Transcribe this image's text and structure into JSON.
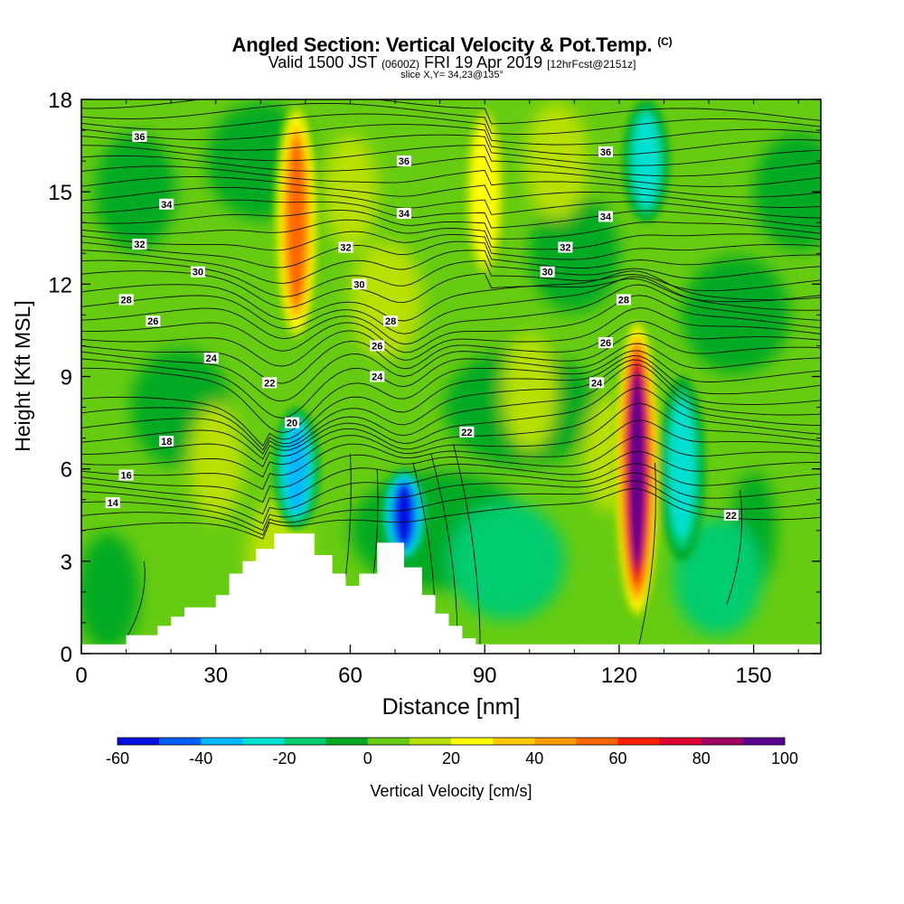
{
  "chart_data": {
    "type": "heatmap",
    "title": "Angled Section: Vertical Velocity & Pot.Temp.",
    "title_mark": "(C)",
    "subtitle_main": "Valid 1500 JST",
    "subtitle_zone": "(0600Z)",
    "subtitle_date": "FRI 19 Apr 2019",
    "subtitle_fcst": "[12hrFcst@2151z]",
    "slice_label": "slice X,Y= 34,23@135°",
    "xlabel": "Distance [nm]",
    "ylabel": "Height [Kft MSL]",
    "xlim": [
      0,
      165
    ],
    "ylim": [
      0,
      18
    ],
    "x_ticks": [
      0,
      30,
      60,
      90,
      120,
      150
    ],
    "y_ticks": [
      0,
      3,
      6,
      9,
      12,
      15,
      18
    ],
    "colorbar": {
      "label": "Vertical Velocity [cm/s]",
      "range": [
        -60,
        100
      ],
      "tick_values": [
        -60,
        -40,
        -20,
        0,
        20,
        40,
        60,
        80,
        100
      ],
      "colors": [
        "#0010e0",
        "#0060ff",
        "#00b8ff",
        "#00e0d0",
        "#00cc70",
        "#00aa22",
        "#66cc11",
        "#b8e000",
        "#ffff00",
        "#ffc800",
        "#ff9a00",
        "#ff6600",
        "#ff2000",
        "#dd0030",
        "#a00060",
        "#5a0090"
      ]
    },
    "velocity_features": [
      {
        "x": 48,
        "z_bottom": 10,
        "z_top": 18,
        "w": 60
      },
      {
        "x": 48,
        "z_bottom": 4,
        "z_top": 8,
        "w": -40
      },
      {
        "x": 72,
        "z_bottom": 3,
        "z_top": 6,
        "w": -60
      },
      {
        "x": 90,
        "z_bottom": 12,
        "z_top": 18,
        "w": 30
      },
      {
        "x": 124,
        "z_bottom": 1,
        "z_top": 11,
        "w": 100
      },
      {
        "x": 134,
        "z_bottom": 3,
        "z_top": 9,
        "w": -30
      },
      {
        "x": 126,
        "z_bottom": 14,
        "z_top": 18,
        "w": -30
      }
    ],
    "terrain": [
      [
        10,
        0.6
      ],
      [
        17,
        0.6
      ],
      [
        17,
        0.9
      ],
      [
        20,
        0.9
      ],
      [
        20,
        1.2
      ],
      [
        23,
        1.2
      ],
      [
        23,
        1.5
      ],
      [
        30,
        1.5
      ],
      [
        30,
        1.9
      ],
      [
        33,
        1.9
      ],
      [
        33,
        2.6
      ],
      [
        36,
        2.6
      ],
      [
        36,
        3.0
      ],
      [
        39,
        3.0
      ],
      [
        39,
        3.4
      ],
      [
        43,
        3.4
      ],
      [
        43,
        3.9
      ],
      [
        52,
        3.9
      ],
      [
        52,
        3.2
      ],
      [
        56,
        3.2
      ],
      [
        56,
        2.6
      ],
      [
        59,
        2.6
      ],
      [
        59,
        2.2
      ],
      [
        62,
        2.2
      ],
      [
        62,
        2.6
      ],
      [
        66,
        2.6
      ],
      [
        66,
        3.6
      ],
      [
        72,
        3.6
      ],
      [
        72,
        2.8
      ],
      [
        76,
        2.8
      ],
      [
        76,
        1.9
      ],
      [
        79,
        1.9
      ],
      [
        79,
        1.3
      ],
      [
        82,
        1.3
      ],
      [
        82,
        0.9
      ],
      [
        85,
        0.9
      ],
      [
        85,
        0.5
      ],
      [
        88,
        0.5
      ],
      [
        88,
        0.3
      ],
      [
        91,
        0.3
      ],
      [
        91,
        0.0
      ]
    ],
    "theta_labels": [
      {
        "text": "36",
        "x": 13,
        "z": 16.8
      },
      {
        "text": "36",
        "x": 72,
        "z": 16.0
      },
      {
        "text": "36",
        "x": 117,
        "z": 16.3
      },
      {
        "text": "34",
        "x": 19,
        "z": 14.6
      },
      {
        "text": "34",
        "x": 72,
        "z": 14.3
      },
      {
        "text": "34",
        "x": 117,
        "z": 14.2
      },
      {
        "text": "32",
        "x": 13,
        "z": 13.3
      },
      {
        "text": "32",
        "x": 59,
        "z": 13.2
      },
      {
        "text": "32",
        "x": 108,
        "z": 13.2
      },
      {
        "text": "30",
        "x": 26,
        "z": 12.4
      },
      {
        "text": "30",
        "x": 62,
        "z": 12.0
      },
      {
        "text": "30",
        "x": 104,
        "z": 12.4
      },
      {
        "text": "28",
        "x": 10,
        "z": 11.5
      },
      {
        "text": "28",
        "x": 69,
        "z": 10.8
      },
      {
        "text": "28",
        "x": 121,
        "z": 11.5
      },
      {
        "text": "26",
        "x": 16,
        "z": 10.8
      },
      {
        "text": "26",
        "x": 66,
        "z": 10.0
      },
      {
        "text": "26",
        "x": 117,
        "z": 10.1
      },
      {
        "text": "24",
        "x": 29,
        "z": 9.6
      },
      {
        "text": "24",
        "x": 66,
        "z": 9.0
      },
      {
        "text": "24",
        "x": 115,
        "z": 8.8
      },
      {
        "text": "22",
        "x": 42,
        "z": 8.8
      },
      {
        "text": "22",
        "x": 86,
        "z": 7.2
      },
      {
        "text": "22",
        "x": 145,
        "z": 4.5
      },
      {
        "text": "20",
        "x": 47,
        "z": 7.5
      },
      {
        "text": "18",
        "x": 19,
        "z": 6.9
      },
      {
        "text": "16",
        "x": 10,
        "z": 5.8
      },
      {
        "text": "14",
        "x": 7,
        "z": 4.9
      }
    ]
  }
}
